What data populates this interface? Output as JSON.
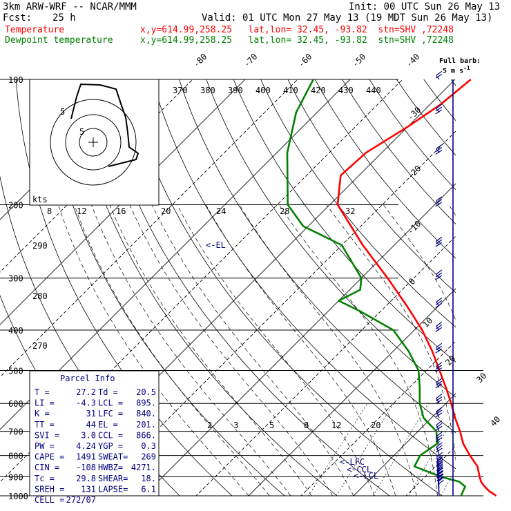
{
  "header": {
    "model": "3km ARW-WRF -- NCAR/MMM",
    "init": "Init: 00 UTC Sun 26 May 13",
    "fcst_label": "Fcst:",
    "fcst_value": "25 h",
    "valid": "Valid: 01 UTC Mon 27 May 13 (19 MDT Sun 26 May 13)"
  },
  "legend": [
    {
      "name": "Temperature",
      "color": "#ff0000",
      "info": "x,y=614.99,258.25   lat,lon= 32.45, -93.82  stn=SHV ,72248"
    },
    {
      "name": "Dewpoint temperature",
      "color": "#008000",
      "info": "x,y=614.99,258.25   lat,lon= 32.45, -93.82  stn=SHV ,72248"
    }
  ],
  "barb_note": {
    "line1": "Full barb:",
    "line2": "5 m s",
    "sup": "-1"
  },
  "hodograph": {
    "units": "kts",
    "ring_labels": [
      "5",
      "5"
    ]
  },
  "parcel_info": {
    "title": "Parcel Info",
    "rows": [
      [
        "T  =",
        "27.2",
        "Td =",
        "20.5"
      ],
      [
        "LI =",
        "-4.3",
        "LCL =",
        "895."
      ],
      [
        "K  =",
        "31",
        "LFC =",
        "840."
      ],
      [
        "TT =",
        "44",
        "EL  =",
        "201."
      ],
      [
        "SVI =",
        "3.0",
        "CCL =",
        "866."
      ],
      [
        "PW =",
        "4.24",
        "YGP =",
        "0.3"
      ],
      [
        "CAPE =",
        "1491",
        "SWEAT=",
        "269"
      ],
      [
        "CIN =",
        "-108",
        "HWBZ=",
        "4271."
      ],
      [
        "Tc =",
        "29.8",
        "SHEAR=",
        "18."
      ],
      [
        "SREH =",
        "131",
        "LAPSE=",
        "6.1"
      ],
      [
        "CELL =",
        "272/07",
        "",
        ""
      ]
    ]
  },
  "level_labels": [
    {
      "p": 250,
      "text": "<-EL"
    },
    {
      "p": 830,
      "text": "<-LFC"
    },
    {
      "p": 865,
      "text": "<-CCL"
    },
    {
      "p": 895,
      "text": "<-LCL"
    }
  ],
  "chart_data": {
    "type": "line",
    "title": "",
    "xlabel": "",
    "ylabel": "",
    "pressure_levels": [
      100,
      200,
      300,
      400,
      500,
      600,
      700,
      800,
      900,
      1000
    ],
    "isotherm_labels": [
      -80,
      -70,
      -60,
      -50,
      -40,
      -30,
      -20,
      -10,
      0,
      10,
      20,
      30,
      40
    ],
    "theta_e_labels": [
      370,
      380,
      390,
      400,
      410,
      420,
      430,
      440
    ],
    "theta_labels": [
      290,
      280,
      270
    ],
    "mixing_ratio_labels": [
      "8",
      "12",
      "16",
      "20",
      "24",
      "28",
      "32"
    ],
    "mixing_ratio_labels_low": [
      "2",
      "3",
      "5",
      "8",
      "12",
      "20"
    ],
    "series": [
      {
        "name": "Temperature",
        "color": "#ff0000",
        "points": [
          [
            1000,
            27.2
          ],
          [
            975,
            25.0
          ],
          [
            950,
            23.2
          ],
          [
            925,
            21.6
          ],
          [
            900,
            20.4
          ],
          [
            850,
            18.0
          ],
          [
            800,
            14.5
          ],
          [
            750,
            11.0
          ],
          [
            700,
            8.0
          ],
          [
            650,
            4.5
          ],
          [
            600,
            1.0
          ],
          [
            550,
            -3.0
          ],
          [
            500,
            -7.5
          ],
          [
            450,
            -12.5
          ],
          [
            400,
            -18.5
          ],
          [
            350,
            -26.0
          ],
          [
            300,
            -35.0
          ],
          [
            250,
            -46.0
          ],
          [
            200,
            -58.5
          ],
          [
            170,
            -63.5
          ],
          [
            150,
            -63.0
          ],
          [
            130,
            -60.0
          ],
          [
            115,
            -58.0
          ],
          [
            100,
            -57.0
          ]
        ]
      },
      {
        "name": "Dewpoint temperature",
        "color": "#008000",
        "points": [
          [
            1000,
            20.5
          ],
          [
            975,
            20.0
          ],
          [
            950,
            19.5
          ],
          [
            925,
            17.5
          ],
          [
            900,
            13.0
          ],
          [
            850,
            6.0
          ],
          [
            800,
            5.0
          ],
          [
            750,
            6.0
          ],
          [
            700,
            3.5
          ],
          [
            650,
            -1.5
          ],
          [
            600,
            -5.0
          ],
          [
            550,
            -8.0
          ],
          [
            500,
            -11.5
          ],
          [
            450,
            -17.0
          ],
          [
            400,
            -24.0
          ],
          [
            360,
            -34.0
          ],
          [
            340,
            -40.0
          ],
          [
            320,
            -38.0
          ],
          [
            300,
            -40.0
          ],
          [
            250,
            -50.0
          ],
          [
            225,
            -61.0
          ],
          [
            200,
            -68.0
          ],
          [
            150,
            -78.0
          ],
          [
            120,
            -84.0
          ],
          [
            100,
            -87.0
          ]
        ]
      }
    ],
    "wind_barbs": [
      [
        1000,
        200,
        8
      ],
      [
        980,
        205,
        10
      ],
      [
        960,
        210,
        14
      ],
      [
        940,
        215,
        16
      ],
      [
        920,
        220,
        18
      ],
      [
        900,
        220,
        20
      ],
      [
        875,
        225,
        22
      ],
      [
        850,
        230,
        24
      ],
      [
        800,
        235,
        25
      ],
      [
        750,
        240,
        25
      ],
      [
        700,
        245,
        25
      ],
      [
        650,
        245,
        25
      ],
      [
        600,
        250,
        25
      ],
      [
        550,
        250,
        25
      ],
      [
        500,
        255,
        25
      ],
      [
        450,
        255,
        25
      ],
      [
        400,
        255,
        25
      ],
      [
        350,
        255,
        25
      ],
      [
        300,
        255,
        25
      ],
      [
        250,
        255,
        25
      ],
      [
        200,
        255,
        25
      ],
      [
        150,
        255,
        25
      ],
      [
        120,
        255,
        25
      ],
      [
        100,
        255,
        10
      ]
    ]
  }
}
